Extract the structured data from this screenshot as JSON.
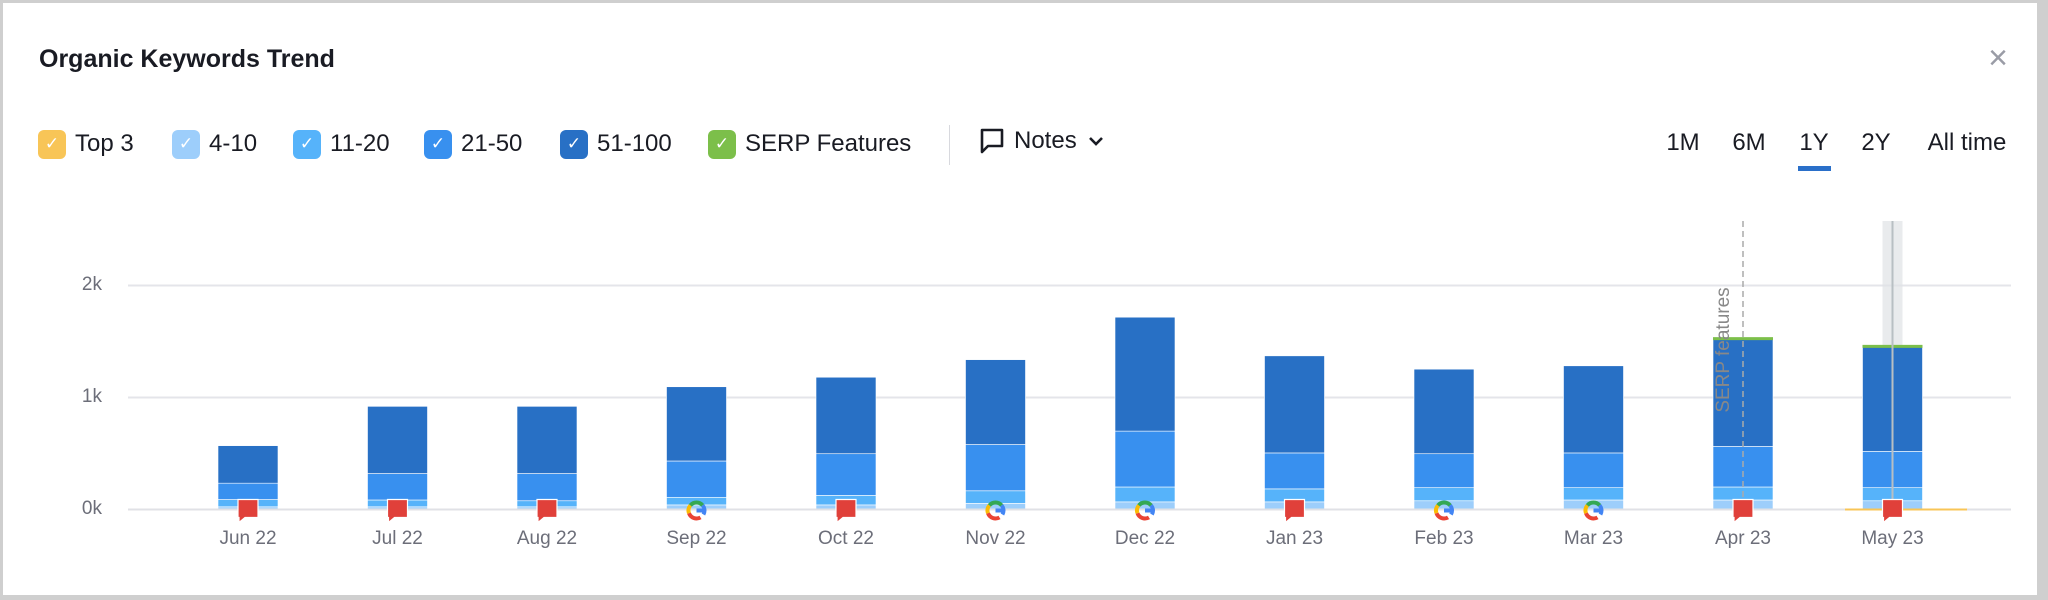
{
  "header": {
    "title": "Organic Keywords Trend",
    "close_icon": "close-icon"
  },
  "legend": [
    {
      "label": "Top 3",
      "color": "#f8c557",
      "checked": true
    },
    {
      "label": "4-10",
      "color": "#9dcefb",
      "checked": true
    },
    {
      "label": "11-20",
      "color": "#56b3fa",
      "checked": true
    },
    {
      "label": "21-50",
      "color": "#3890ef",
      "checked": true
    },
    {
      "label": "51-100",
      "color": "#2870c5",
      "checked": true
    },
    {
      "label": "SERP Features",
      "color": "#7cbf4a",
      "checked": true
    }
  ],
  "notes": {
    "label": "Notes",
    "icon": "comment-icon"
  },
  "periods": [
    {
      "label": "1M",
      "active": false
    },
    {
      "label": "6M",
      "active": false
    },
    {
      "label": "1Y",
      "active": true
    },
    {
      "label": "2Y",
      "active": false
    },
    {
      "label": "All time",
      "active": false
    }
  ],
  "annotation": "SERP features",
  "chart_data": {
    "type": "bar",
    "stacked": true,
    "categories": [
      "Jun 22",
      "Jul 22",
      "Aug 22",
      "Sep 22",
      "Oct 22",
      "Nov 22",
      "Dec 22",
      "Jan 23",
      "Feb 23",
      "Mar 23",
      "Apr 23",
      "May 23"
    ],
    "yticks": [
      "0k",
      "1k",
      "2k"
    ],
    "ylim": [
      0,
      2000
    ],
    "grid": true,
    "series": [
      {
        "name": "Top 3",
        "color": "#f8c557",
        "values": [
          5,
          5,
          5,
          5,
          5,
          5,
          5,
          5,
          5,
          5,
          5,
          5
        ]
      },
      {
        "name": "4-10",
        "color": "#9dcefb",
        "values": [
          19,
          19,
          19,
          36,
          36,
          50,
          63,
          63,
          73,
          80,
          80,
          73
        ]
      },
      {
        "name": "11-20",
        "color": "#56b3fa",
        "values": [
          65,
          61,
          54,
          68,
          85,
          112,
          133,
          116,
          117,
          110,
          116,
          117
        ]
      },
      {
        "name": "21-50",
        "color": "#3890ef",
        "values": [
          146,
          236,
          243,
          324,
          372,
          413,
          499,
          321,
          303,
          310,
          362,
          324
        ]
      },
      {
        "name": "51-100",
        "color": "#2870c5",
        "values": [
          335,
          600,
          600,
          663,
          683,
          758,
          1017,
          867,
          755,
          778,
          963,
          938
        ]
      },
      {
        "name": "SERP Features",
        "color": "#7cbf4a",
        "values": [
          0,
          0,
          0,
          0,
          0,
          0,
          0,
          0,
          0,
          0,
          4,
          4
        ]
      }
    ],
    "markers": [
      "note-flag",
      "note-flag",
      "note-flag",
      "google",
      "note-flag",
      "google",
      "google",
      "note-flag",
      "google",
      "google",
      "note-flag",
      "note-flag"
    ],
    "highlighted_category": "May 23",
    "annotation_category": "Apr 23"
  }
}
